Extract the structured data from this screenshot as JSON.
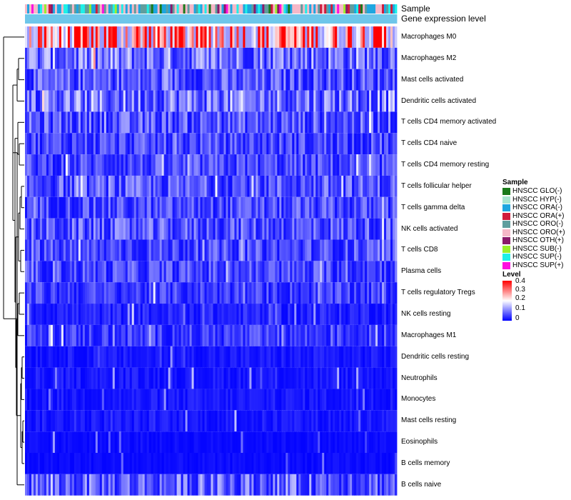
{
  "chart_data": {
    "type": "heatmap",
    "title": "",
    "annotation_rows": [
      "Sample",
      "Gene expression level"
    ],
    "rows": [
      {
        "name": "Macrophages M0",
        "level": 0.3
      },
      {
        "name": "Macrophages M2",
        "level": 0.1
      },
      {
        "name": "Mast cells activated",
        "level": 0.07
      },
      {
        "name": "Dendritic cells activated",
        "level": 0.1
      },
      {
        "name": "T cells CD4 memory activated",
        "level": 0.07
      },
      {
        "name": "T cells CD4 naive",
        "level": 0.06
      },
      {
        "name": "T cells CD4 memory resting",
        "level": 0.06
      },
      {
        "name": "T cells follicular helper",
        "level": 0.07
      },
      {
        "name": "T cells gamma delta",
        "level": 0.06
      },
      {
        "name": "NK cells activated",
        "level": 0.07
      },
      {
        "name": "T cells CD8",
        "level": 0.06
      },
      {
        "name": "Plasma cells",
        "level": 0.06
      },
      {
        "name": "T cells regulatory  Tregs",
        "level": 0.05
      },
      {
        "name": "NK cells resting",
        "level": 0.03
      },
      {
        "name": "Macrophages M1",
        "level": 0.05
      },
      {
        "name": "Dendritic cells resting",
        "level": 0.02
      },
      {
        "name": "Neutrophils",
        "level": 0.02
      },
      {
        "name": "Monocytes",
        "level": 0.02
      },
      {
        "name": "Mast cells resting",
        "level": 0.02
      },
      {
        "name": "Eosinophils",
        "level": 0.01
      },
      {
        "name": "B cells memory",
        "level": 0.01
      },
      {
        "name": "B cells naive",
        "level": 0.08
      }
    ],
    "n_samples": 174,
    "color_scale": {
      "min": 0,
      "max": 0.4,
      "colors": [
        "#0000ff",
        "#ffffff",
        "#ff0000"
      ],
      "ticks": [
        "0.4",
        "0.3",
        "0.2",
        "0.1",
        "0"
      ]
    },
    "gene_expression_level_color": "#6ec6ea",
    "legend": {
      "sample_title": "Sample",
      "level_title": "Level",
      "samples": [
        {
          "label": "HNSCC GLO(-)",
          "color": "#1a7a1a"
        },
        {
          "label": "HNSCC HYP(-)",
          "color": "#a8e6cf"
        },
        {
          "label": "HNSCC ORA(-)",
          "color": "#1ea6e0"
        },
        {
          "label": "HNSCC ORA(+)",
          "color": "#d01c3c"
        },
        {
          "label": "HNSCC ORO(-)",
          "color": "#5f9e9e"
        },
        {
          "label": "HNSCC ORO(+)",
          "color": "#f5b8c8"
        },
        {
          "label": "HNSCC OTH(+)",
          "color": "#8a1a6a"
        },
        {
          "label": "HNSCC SUB(-)",
          "color": "#9aef2a"
        },
        {
          "label": "HNSCC SUP(-)",
          "color": "#1ef0e8"
        },
        {
          "label": "HNSCC SUP(+)",
          "color": "#ff10e0"
        }
      ]
    }
  }
}
